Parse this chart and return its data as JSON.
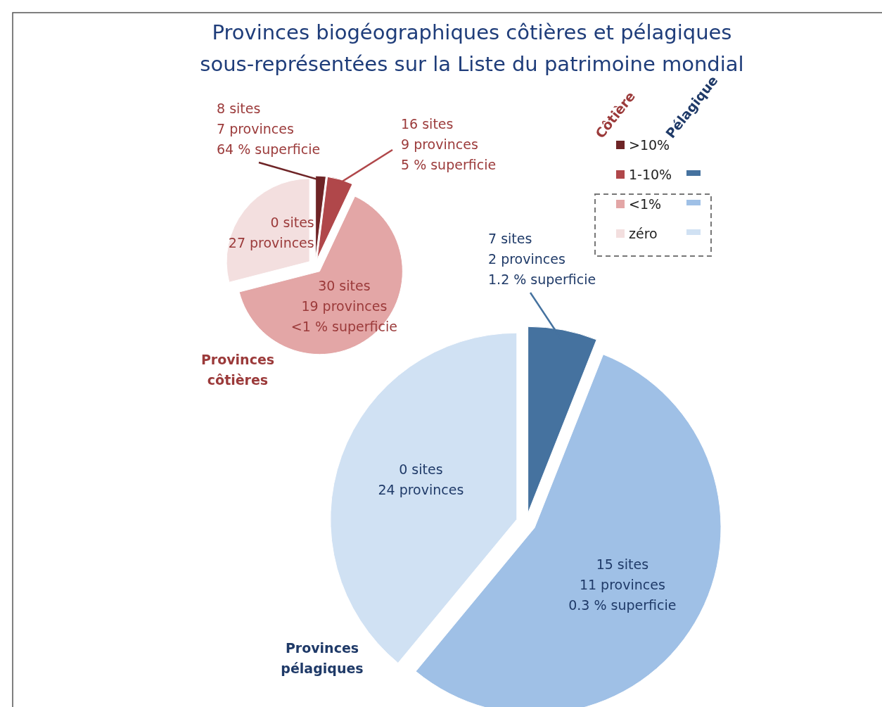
{
  "chart_data": [
    {
      "type": "other",
      "title": "Provinces biogéographiques côtières et pélagiques\nsous-représentées sur la Liste du patrimoine mondial"
    },
    {
      "type": "pie",
      "title": "Provinces\ncôtières",
      "legend_title": "Côtière",
      "legend": "top right",
      "categories": [
        ">10%",
        "1-10%",
        "<1%",
        "zéro"
      ],
      "values": [
        2,
        5,
        64,
        29
      ],
      "colors": [
        "#6e2426",
        "#b0474a",
        "#e3a6a6",
        "#f3dfdf"
      ],
      "annotations": [
        "8 sites\n7 provinces\n64 % superficie",
        "16 sites\n9 provinces\n5 %  superficie",
        "30  sites\n19 provinces\n<1 %  superficie",
        "0 sites\n27 provinces"
      ]
    },
    {
      "type": "pie",
      "title": "Provinces\npélagiques",
      "legend_title": "Pélagique",
      "categories": [
        null,
        null,
        null
      ],
      "values": [
        6,
        55,
        39
      ],
      "colors": [
        "#45729f",
        "#9fc0e6",
        "#d0e1f3"
      ],
      "annotations": [
        "7 sites\n2 provinces\n1.2 % superficie",
        "15  sites\n11 provinces\n0.3 % superficie",
        "0  sites\n24 provinces"
      ]
    }
  ]
}
